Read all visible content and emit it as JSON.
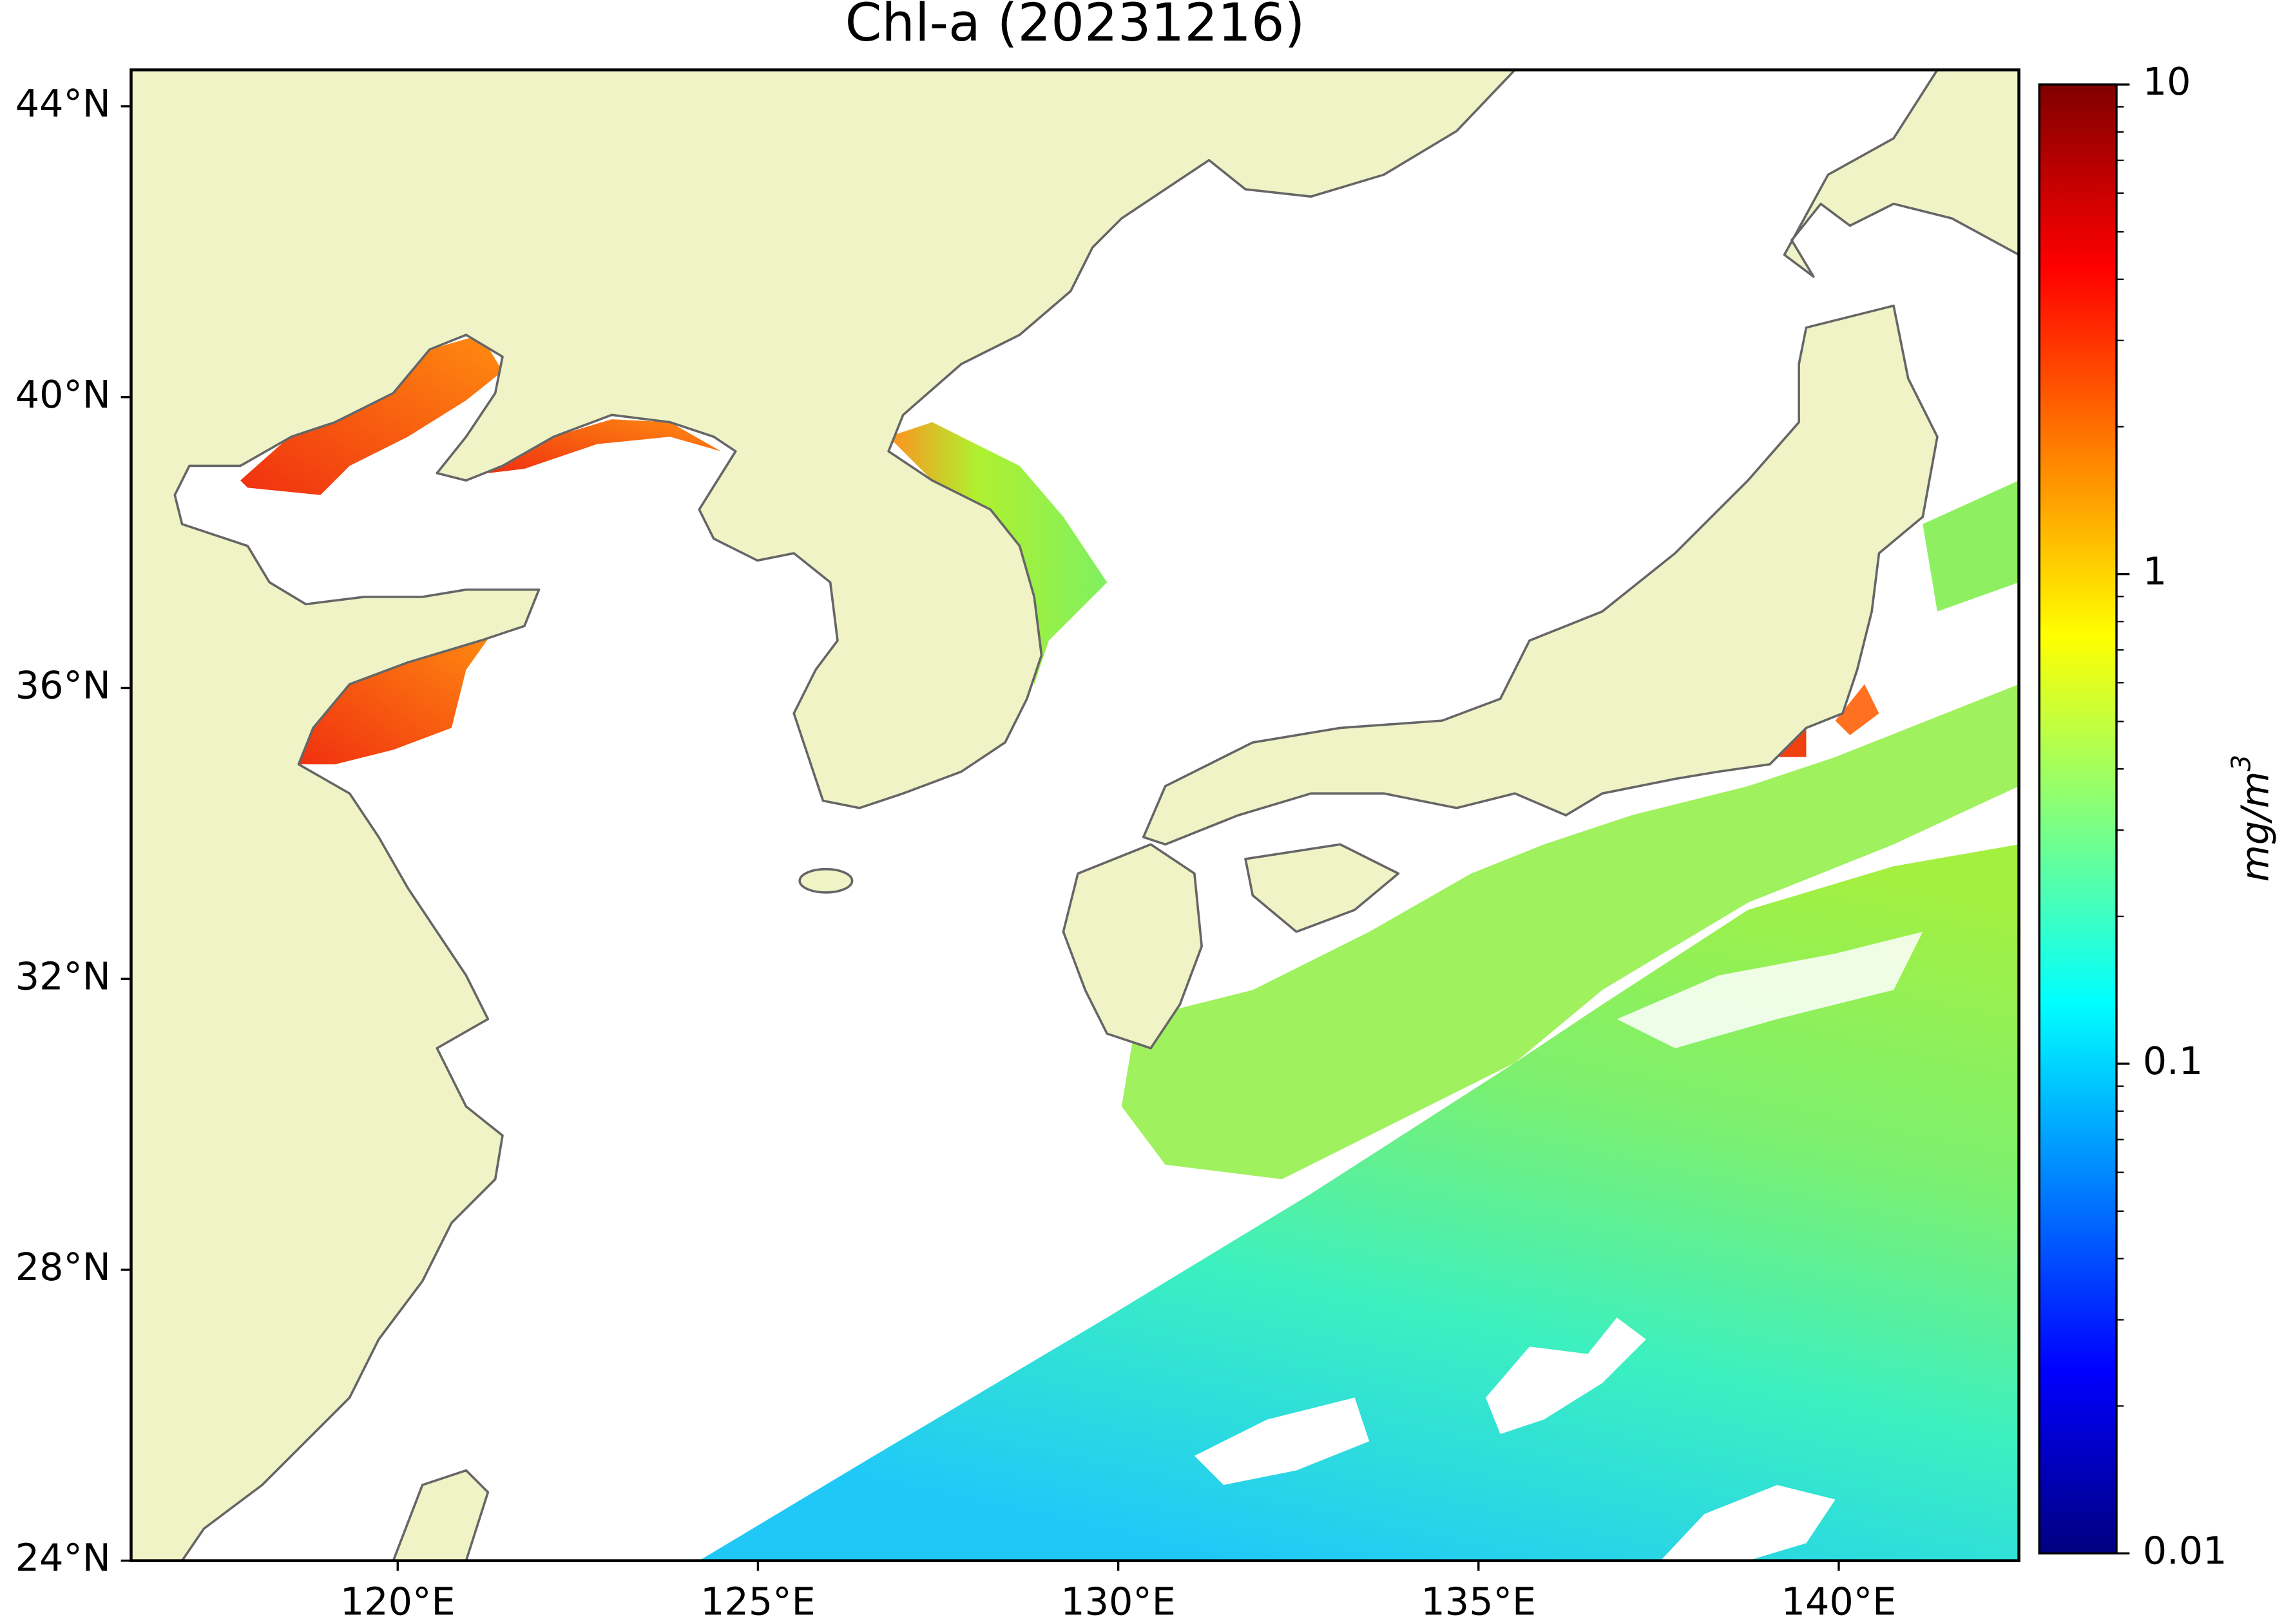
{
  "title": "Chl-a (20231216)",
  "map": {
    "xlim": [
      116.3,
      142.5
    ],
    "ylim": [
      24,
      44.5
    ],
    "xticks": [
      {
        "value": 120,
        "label": "120°E"
      },
      {
        "value": 125,
        "label": "125°E"
      },
      {
        "value": 130,
        "label": "130°E"
      },
      {
        "value": 135,
        "label": "135°E"
      },
      {
        "value": 140,
        "label": "140°E"
      }
    ],
    "yticks": [
      {
        "value": 24,
        "label": "24°N"
      },
      {
        "value": 28,
        "label": "28°N"
      },
      {
        "value": 32,
        "label": "32°N"
      },
      {
        "value": 36,
        "label": "36°N"
      },
      {
        "value": 40,
        "label": "40°N"
      },
      {
        "value": 44,
        "label": "44°N"
      }
    ]
  },
  "colorbar": {
    "label": "mg/m",
    "label_exponent": "3",
    "scale": "log",
    "colormap": "jet",
    "lim": [
      0.01,
      10
    ],
    "ticks": [
      0.01,
      0.1,
      1,
      10
    ],
    "minor_ticks": [
      0.02,
      0.03,
      0.04,
      0.05,
      0.06,
      0.07,
      0.08,
      0.09,
      0.2,
      0.3,
      0.4,
      0.5,
      0.6,
      0.7,
      0.8,
      0.9,
      2,
      3,
      4,
      5,
      6,
      7,
      8,
      9
    ]
  }
}
